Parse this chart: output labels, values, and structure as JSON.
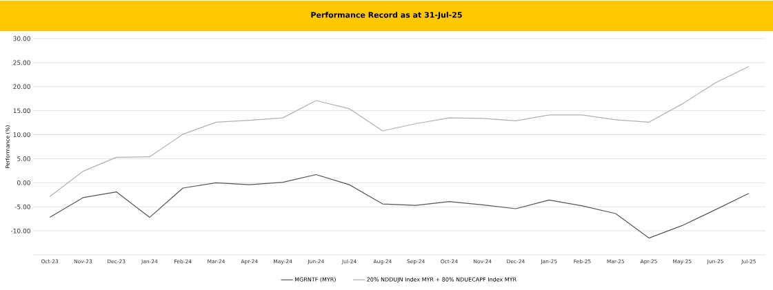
{
  "chart_data": {
    "type": "line",
    "title": "Performance Record as at 31-Jul-25",
    "ylabel": "Performance (%)",
    "categories": [
      "Oct-23",
      "Nov-23",
      "Dec-23",
      "Jan-24",
      "Feb-24",
      "Mar-24",
      "Apr-24",
      "May-24",
      "Jun-24",
      "Jul-24",
      "Aug-24",
      "Sep-24",
      "Oct-24",
      "Nov-24",
      "Dec-24",
      "Jan-25",
      "Feb-25",
      "Mar-25",
      "Apr-25",
      "May-25",
      "Jun-25",
      "Jul-25"
    ],
    "series": [
      {
        "name": "MGRNTF (MYR)",
        "color": "#555555",
        "values": [
          -7.2,
          -3.1,
          -1.9,
          -7.2,
          -1.1,
          0.0,
          -0.4,
          0.1,
          1.7,
          -0.4,
          -4.4,
          -4.7,
          -3.9,
          -4.6,
          -5.4,
          -3.6,
          -4.8,
          -6.4,
          -11.5,
          -8.9,
          -5.6,
          -2.2
        ]
      },
      {
        "name": "20% NDDUJN Index MYR + 80% NDUECAPF Index MYR",
        "color": "#b0b0b0",
        "values": [
          -2.9,
          2.4,
          5.3,
          5.4,
          10.1,
          12.6,
          13.0,
          13.5,
          17.1,
          15.4,
          10.8,
          12.3,
          13.5,
          13.4,
          12.9,
          14.1,
          14.1,
          13.1,
          12.6,
          16.4,
          20.8,
          24.2
        ]
      }
    ],
    "ylim": [
      -15,
      30
    ],
    "yticks": [
      {
        "value": -15,
        "label": null
      },
      {
        "value": -10,
        "label": "-10.00"
      },
      {
        "value": -5,
        "label": "-5.00"
      },
      {
        "value": 0,
        "label": "0.00"
      },
      {
        "value": 5,
        "label": "5.00"
      },
      {
        "value": 10,
        "label": "10.00"
      },
      {
        "value": 15,
        "label": "15.00"
      },
      {
        "value": 20,
        "label": "20.00"
      },
      {
        "value": 25,
        "label": "25.00"
      },
      {
        "value": 30,
        "label": "30.00"
      }
    ],
    "grid": "y",
    "legend": "bottom"
  }
}
